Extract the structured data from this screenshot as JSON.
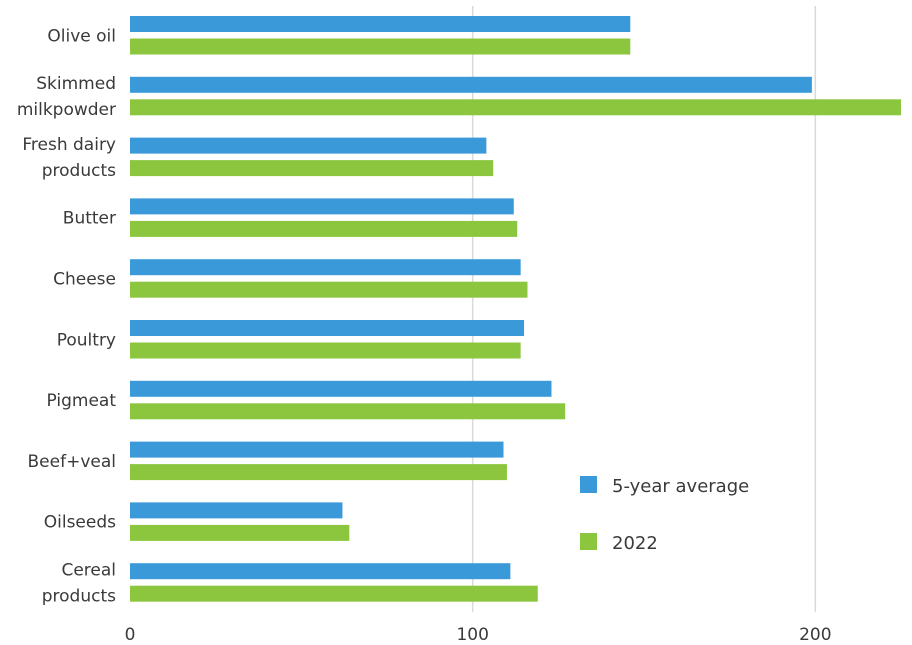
{
  "chart_data": {
    "type": "bar",
    "orientation": "horizontal",
    "title": "",
    "xlabel": "",
    "ylabel": "",
    "categories": [
      [
        "Olive oil"
      ],
      [
        "Skimmed",
        "milkpowder"
      ],
      [
        "Fresh dairy",
        "products"
      ],
      [
        "Butter"
      ],
      [
        "Cheese"
      ],
      [
        "Poultry"
      ],
      [
        "Pigmeat"
      ],
      [
        "Beef+veal"
      ],
      [
        "Oilseeds"
      ],
      [
        "Cereal",
        "products"
      ]
    ],
    "series": [
      {
        "name": "5-year average",
        "color": "#3a9ad9",
        "values": [
          146,
          199,
          104,
          112,
          114,
          115,
          123,
          109,
          62,
          111
        ]
      },
      {
        "name": "2022",
        "color": "#8cc63f",
        "values": [
          146,
          225,
          106,
          113,
          116,
          114,
          127,
          110,
          64,
          119
        ]
      }
    ],
    "xlim": [
      0,
      225
    ],
    "xticks": [
      "0",
      "100",
      "200"
    ],
    "xtick_values": [
      0,
      100,
      200
    ],
    "grid": "vertical",
    "legend_position": "bottom-right"
  }
}
